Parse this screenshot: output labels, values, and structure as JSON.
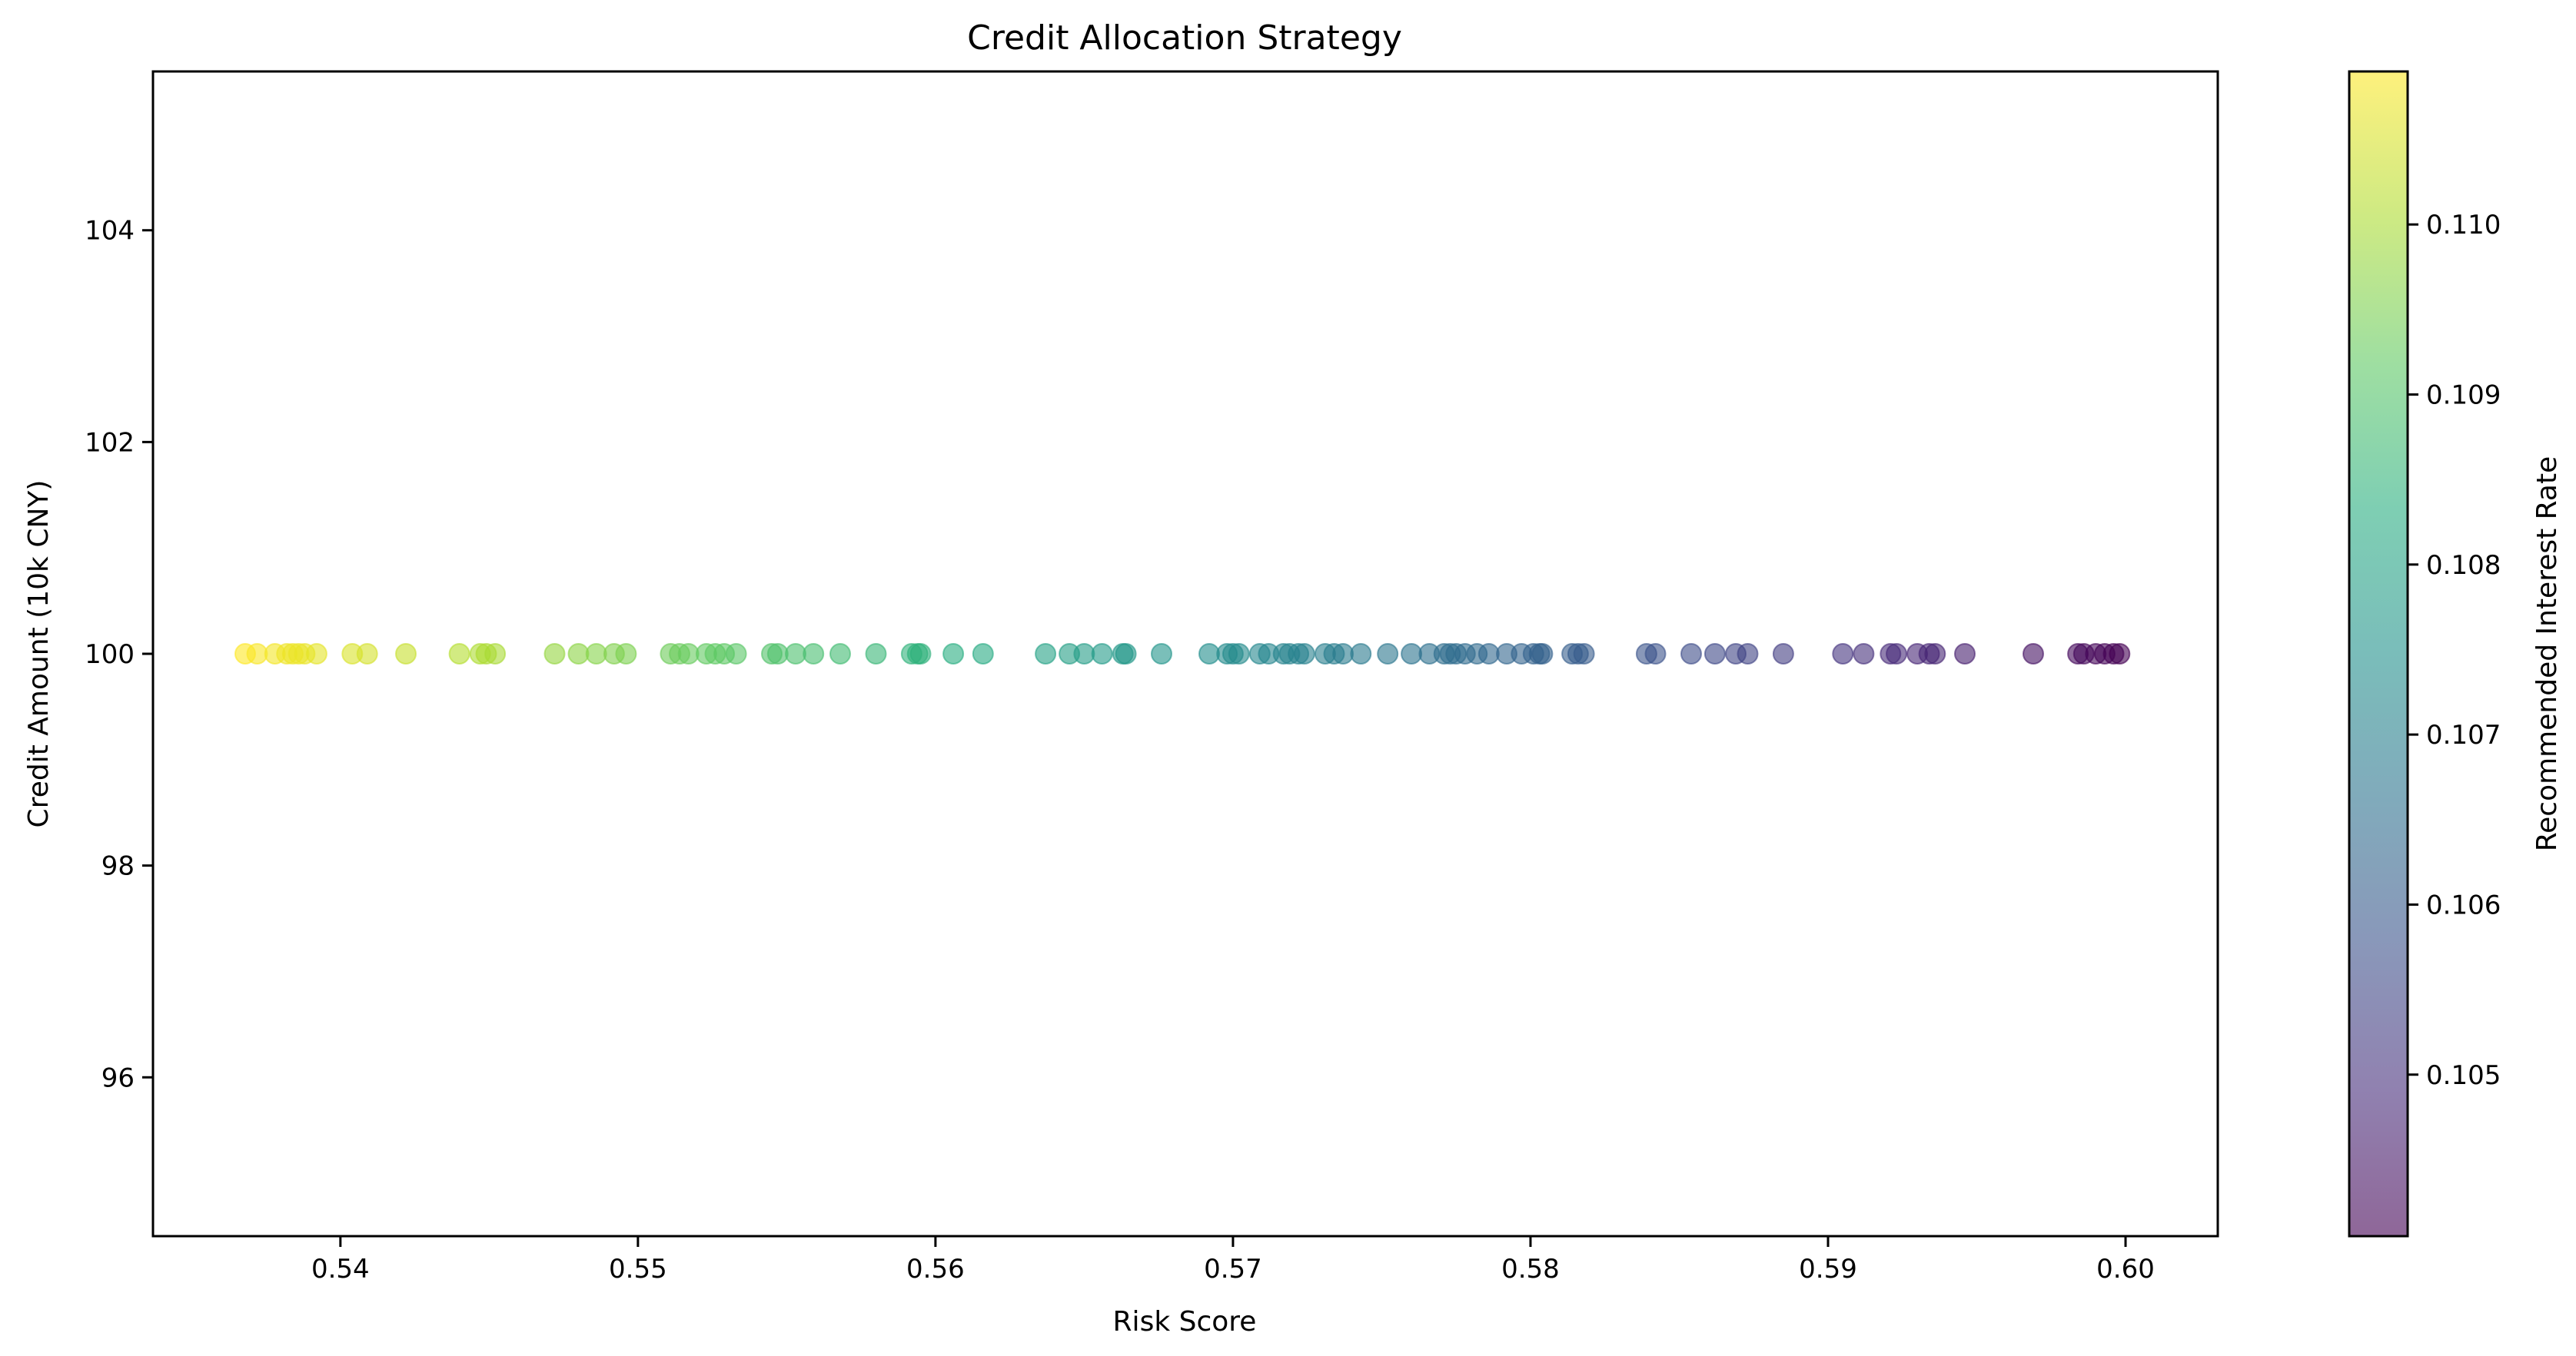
{
  "chart_data": {
    "type": "scatter",
    "title": "Credit Allocation Strategy",
    "xlabel": "Risk Score",
    "ylabel": "Credit Amount (10k CNY)",
    "xlim": [
      0.5337,
      0.6031
    ],
    "ylim": [
      94.5,
      105.5
    ],
    "x_ticks": [
      0.54,
      0.55,
      0.56,
      0.57,
      0.58,
      0.59,
      0.6
    ],
    "x_tick_labels": [
      "0.54",
      "0.55",
      "0.56",
      "0.57",
      "0.58",
      "0.59",
      "0.60"
    ],
    "y_ticks": [
      96,
      98,
      100,
      102,
      104
    ],
    "y_tick_labels": [
      "96",
      "98",
      "100",
      "102",
      "104"
    ],
    "grid": false,
    "marker_alpha": 0.6,
    "colormap": "viridis",
    "colorbar": {
      "label": "Recommended Interest Rate",
      "min": 0.10405,
      "max": 0.1109,
      "ticks": [
        0.105,
        0.106,
        0.107,
        0.108,
        0.109,
        0.11
      ],
      "tick_labels": [
        "0.105",
        "0.106",
        "0.107",
        "0.108",
        "0.109",
        "0.110"
      ]
    },
    "series": [
      {
        "x": [
          0.5368,
          0.5372,
          0.5378,
          0.5382,
          0.5384,
          0.5386,
          0.5388,
          0.5392,
          0.5404,
          0.5409,
          0.5422,
          0.544,
          0.5447,
          0.5449,
          0.5452,
          0.5472,
          0.548,
          0.5486,
          0.5492,
          0.5496,
          0.5511,
          0.5514,
          0.5517,
          0.5523,
          0.5526,
          0.5529,
          0.5533,
          0.5545,
          0.5547,
          0.5553,
          0.5559,
          0.5568,
          0.558,
          0.5592,
          0.5594,
          0.5595,
          0.5606,
          0.5616,
          0.5637,
          0.5645,
          0.565,
          0.5656,
          0.5663,
          0.5664,
          0.5676,
          0.5692,
          0.5698,
          0.57,
          0.5702,
          0.5709,
          0.5712,
          0.5717,
          0.5719,
          0.5722,
          0.5724,
          0.5731,
          0.5734,
          0.5737,
          0.5743,
          0.5752,
          0.576,
          0.5766,
          0.5771,
          0.5773,
          0.5775,
          0.5778,
          0.5782,
          0.5786,
          0.5792,
          0.5797,
          0.5801,
          0.5803,
          0.5804,
          0.5814,
          0.5816,
          0.5818,
          0.5839,
          0.5842,
          0.5854,
          0.5862,
          0.5869,
          0.5873,
          0.5885,
          0.5905,
          0.5912,
          0.5921,
          0.5923,
          0.593,
          0.5934,
          0.5936,
          0.5946,
          0.5969,
          0.5984,
          0.5986,
          0.599,
          0.5993,
          0.5996,
          0.5998
        ],
        "y": [
          100,
          100,
          100,
          100,
          100,
          100,
          100,
          100,
          100,
          100,
          100,
          100,
          100,
          100,
          100,
          100,
          100,
          100,
          100,
          100,
          100,
          100,
          100,
          100,
          100,
          100,
          100,
          100,
          100,
          100,
          100,
          100,
          100,
          100,
          100,
          100,
          100,
          100,
          100,
          100,
          100,
          100,
          100,
          100,
          100,
          100,
          100,
          100,
          100,
          100,
          100,
          100,
          100,
          100,
          100,
          100,
          100,
          100,
          100,
          100,
          100,
          100,
          100,
          100,
          100,
          100,
          100,
          100,
          100,
          100,
          100,
          100,
          100,
          100,
          100,
          100,
          100,
          100,
          100,
          100,
          100,
          100,
          100,
          100,
          100,
          100,
          100,
          100,
          100,
          100,
          100,
          100,
          100,
          100,
          100,
          100,
          100,
          100
        ]
      }
    ]
  }
}
